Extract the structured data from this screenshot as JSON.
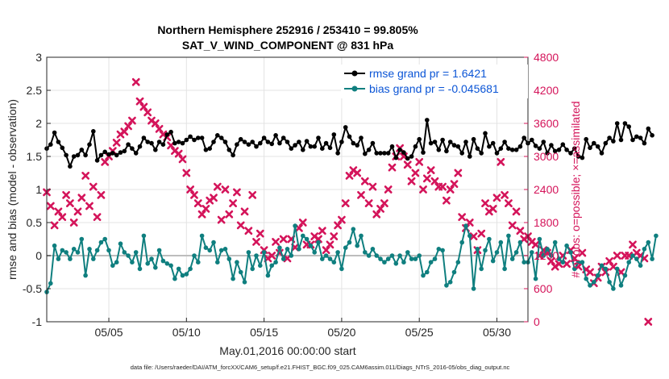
{
  "figure": {
    "title_line1": "Northern Hemisphere 252916 / 253410 = 99.805%",
    "title_line2": "SAT_V_WIND_COMPONENT @ 831 hPa",
    "footer": "data file: /Users/raeder/DAI/ATM_forcXX/CAM6_setup/f.e21.FHIST_BGC.f09_025.CAM6assim.011/Diags_NTrS_2016-05/obs_diag_output.nc"
  },
  "chart_data": {
    "type": "line",
    "xlabel": "May.01,2016 00:00:00 start",
    "x_ticks": [
      "05/05",
      "05/10",
      "05/15",
      "05/20",
      "05/25",
      "05/30"
    ],
    "x_tick_days": [
      5,
      10,
      15,
      20,
      25,
      30
    ],
    "xlim": [
      1,
      32
    ],
    "ylabel": "rmse and bias (model - observation)",
    "ylim": [
      -1,
      3
    ],
    "y_ticks": [
      "-1",
      "-0.5",
      "0",
      "0.5",
      "1",
      "1.5",
      "2",
      "2.5",
      "3"
    ],
    "y2label": "# of obs: o=possible; ×=assimilated",
    "y2lim": [
      0,
      4800
    ],
    "y2_ticks": [
      "0",
      "600",
      "1200",
      "1800",
      "2400",
      "3000",
      "3600",
      "4200",
      "4800"
    ],
    "grid": true,
    "legend_position": "top-right",
    "colors": {
      "rmse": "#000000",
      "bias": "#0f7f7f",
      "obs": "#d4145a",
      "zero": "#bdbdbd",
      "legend_text": "#0b55d6"
    },
    "series": [
      {
        "name": "rmse grand pr = 1.6421",
        "axis": "left",
        "x_start": 1.0,
        "x_step": 0.25,
        "values": [
          1.62,
          1.68,
          1.86,
          1.72,
          1.63,
          1.52,
          1.35,
          1.5,
          1.52,
          1.6,
          1.52,
          1.68,
          1.88,
          1.44,
          1.52,
          1.57,
          1.53,
          1.55,
          1.52,
          1.56,
          1.58,
          1.68,
          1.62,
          1.55,
          1.65,
          1.78,
          1.72,
          1.7,
          1.6,
          1.72,
          1.68,
          1.83,
          1.87,
          1.7,
          1.72,
          1.7,
          1.75,
          1.8,
          1.75,
          1.78,
          1.78,
          1.6,
          1.62,
          1.72,
          1.82,
          1.78,
          1.72,
          1.6,
          1.52,
          1.68,
          1.76,
          1.72,
          1.68,
          1.72,
          1.65,
          1.7,
          1.78,
          1.72,
          1.69,
          1.82,
          1.7,
          1.78,
          1.72,
          1.62,
          1.67,
          1.72,
          1.6,
          1.73,
          1.65,
          1.65,
          1.78,
          1.62,
          1.7,
          1.63,
          1.83,
          1.55,
          1.72,
          1.94,
          1.8,
          1.7,
          1.67,
          1.78,
          1.54,
          1.6,
          1.7,
          1.55,
          1.55,
          1.55,
          1.55,
          1.65,
          1.48,
          1.6,
          1.56,
          1.47,
          1.5,
          1.65,
          1.76,
          1.56,
          2.05,
          1.7,
          1.72,
          1.6,
          1.75,
          1.58,
          1.72,
          1.67,
          1.65,
          1.55,
          1.72,
          1.5,
          1.76,
          1.62,
          1.55,
          1.85,
          1.65,
          1.7,
          1.55,
          1.62,
          1.72,
          1.62,
          1.6,
          1.6,
          1.65,
          1.78,
          1.7,
          1.75,
          1.66,
          1.62,
          1.72,
          1.55,
          1.67,
          1.58,
          1.6,
          1.68,
          1.6,
          1.55,
          1.62,
          1.5,
          1.48,
          1.76,
          1.63,
          1.7,
          1.65,
          1.55,
          1.7,
          1.78,
          1.73,
          2.0,
          1.75,
          2.0,
          1.95,
          1.75,
          1.8,
          1.78,
          1.7,
          1.92,
          1.82
        ]
      },
      {
        "name": "bias grand pr = -0.045681",
        "axis": "left",
        "x_start": 1.0,
        "x_step": 0.25,
        "values": [
          -0.55,
          -0.42,
          0.15,
          -0.05,
          0.08,
          0.05,
          -0.05,
          0.1,
          0.05,
          0.25,
          -0.3,
          0.1,
          -0.05,
          0.08,
          0.2,
          0.25,
          0.08,
          -0.15,
          -0.1,
          0.18,
          0.05,
          0.0,
          -0.1,
          0.05,
          -0.2,
          0.3,
          -0.12,
          -0.05,
          -0.18,
          0.08,
          -0.08,
          -0.12,
          -0.15,
          -0.35,
          -0.2,
          -0.3,
          -0.28,
          -0.2,
          0.0,
          -0.1,
          0.3,
          0.12,
          0.08,
          0.2,
          -0.1,
          0.08,
          0.1,
          -0.05,
          -0.35,
          -0.1,
          -0.25,
          -0.4,
          0.05,
          -0.2,
          0.0,
          -0.15,
          0.05,
          -0.3,
          -0.15,
          -0.1,
          0.12,
          -0.05,
          0.1,
          0.0,
          0.45,
          0.1,
          0.3,
          0.25,
          0.15,
          0.05,
          0.2,
          -0.05,
          0.0,
          -0.05,
          -0.1,
          0.05,
          -0.2,
          0.12,
          0.2,
          0.4,
          0.15,
          0.3,
          0.05,
          0.0,
          0.1,
          0.0,
          -0.05,
          -0.1,
          -0.05,
          0.0,
          -0.12,
          0.0,
          -0.1,
          0.05,
          -0.05,
          -0.05,
          0.0,
          -0.3,
          -0.25,
          -0.1,
          -0.05,
          0.1,
          0.08,
          -0.45,
          -0.4,
          -0.25,
          -0.1,
          0.2,
          0.45,
          0.3,
          -0.5,
          0.1,
          -0.2,
          0.08,
          0.25,
          -0.08,
          0.05,
          0.2,
          -0.2,
          0.3,
          -0.05,
          0.05,
          0.2,
          -0.1,
          -0.1,
          0.05,
          -0.35,
          0.25,
          0.0,
          0.1,
          0.0,
          0.2,
          -0.05,
          -0.1,
          0.15,
          0.05,
          -0.2,
          -0.1,
          -0.1,
          -0.35,
          -0.45,
          -0.4,
          -0.3,
          -0.15,
          -0.2,
          -0.4,
          -0.5,
          -0.2,
          -0.45,
          -0.3,
          -0.1,
          0.0,
          -0.05,
          -0.15,
          0.1,
          0.2,
          -0.05,
          0.3
        ]
      },
      {
        "name": "obs assimilated",
        "axis": "right",
        "x_start": 1.0,
        "x_step": 0.25,
        "values": [
          2350,
          2100,
          1750,
          2000,
          1900,
          2300,
          2150,
          1800,
          2000,
          2250,
          2650,
          2100,
          2450,
          1900,
          2300,
          2900,
          3000,
          3100,
          3250,
          3400,
          3450,
          3550,
          3650,
          4350,
          4000,
          3900,
          3800,
          3650,
          3600,
          3500,
          3400,
          3350,
          3200,
          3100,
          3050,
          2950,
          2700,
          2400,
          2300,
          2150,
          1950,
          2050,
          2200,
          2250,
          2450,
          1850,
          2400,
          1950,
          2150,
          2350,
          1750,
          2000,
          1650,
          2300,
          1450,
          1600,
          1300,
          1150,
          1200,
          1450,
          1250,
          1500,
          1150,
          1500,
          1350,
          1700,
          1800,
          1400,
          1400,
          1550,
          1500,
          1650,
          1300,
          1400,
          1550,
          1750,
          1850,
          2150,
          2650,
          2750,
          2700,
          2300,
          2550,
          2150,
          2450,
          1950,
          2050,
          2150,
          2400,
          2800,
          3000,
          3150,
          3000,
          2850,
          2550,
          2700,
          2900,
          2400,
          2600,
          2750,
          2550,
          2450,
          2450,
          2200,
          2400,
          2500,
          2700,
          1900,
          1700,
          1800,
          1550,
          1300,
          1600,
          2150,
          2000,
          2050,
          2250,
          2900,
          2300,
          2150,
          1750,
          2000,
          1650,
          1500,
          1550,
          1450,
          1400,
          1200,
          1300,
          1250,
          1100,
          1000,
          1050,
          1200,
          1050,
          1300,
          1150,
          1000,
          1250,
          950,
          900,
          700,
          800,
          1000,
          900,
          1100,
          1000,
          1200,
          900,
          1200,
          1200,
          1400,
          1250,
          1200,
          1150,
          0
        ]
      }
    ]
  }
}
